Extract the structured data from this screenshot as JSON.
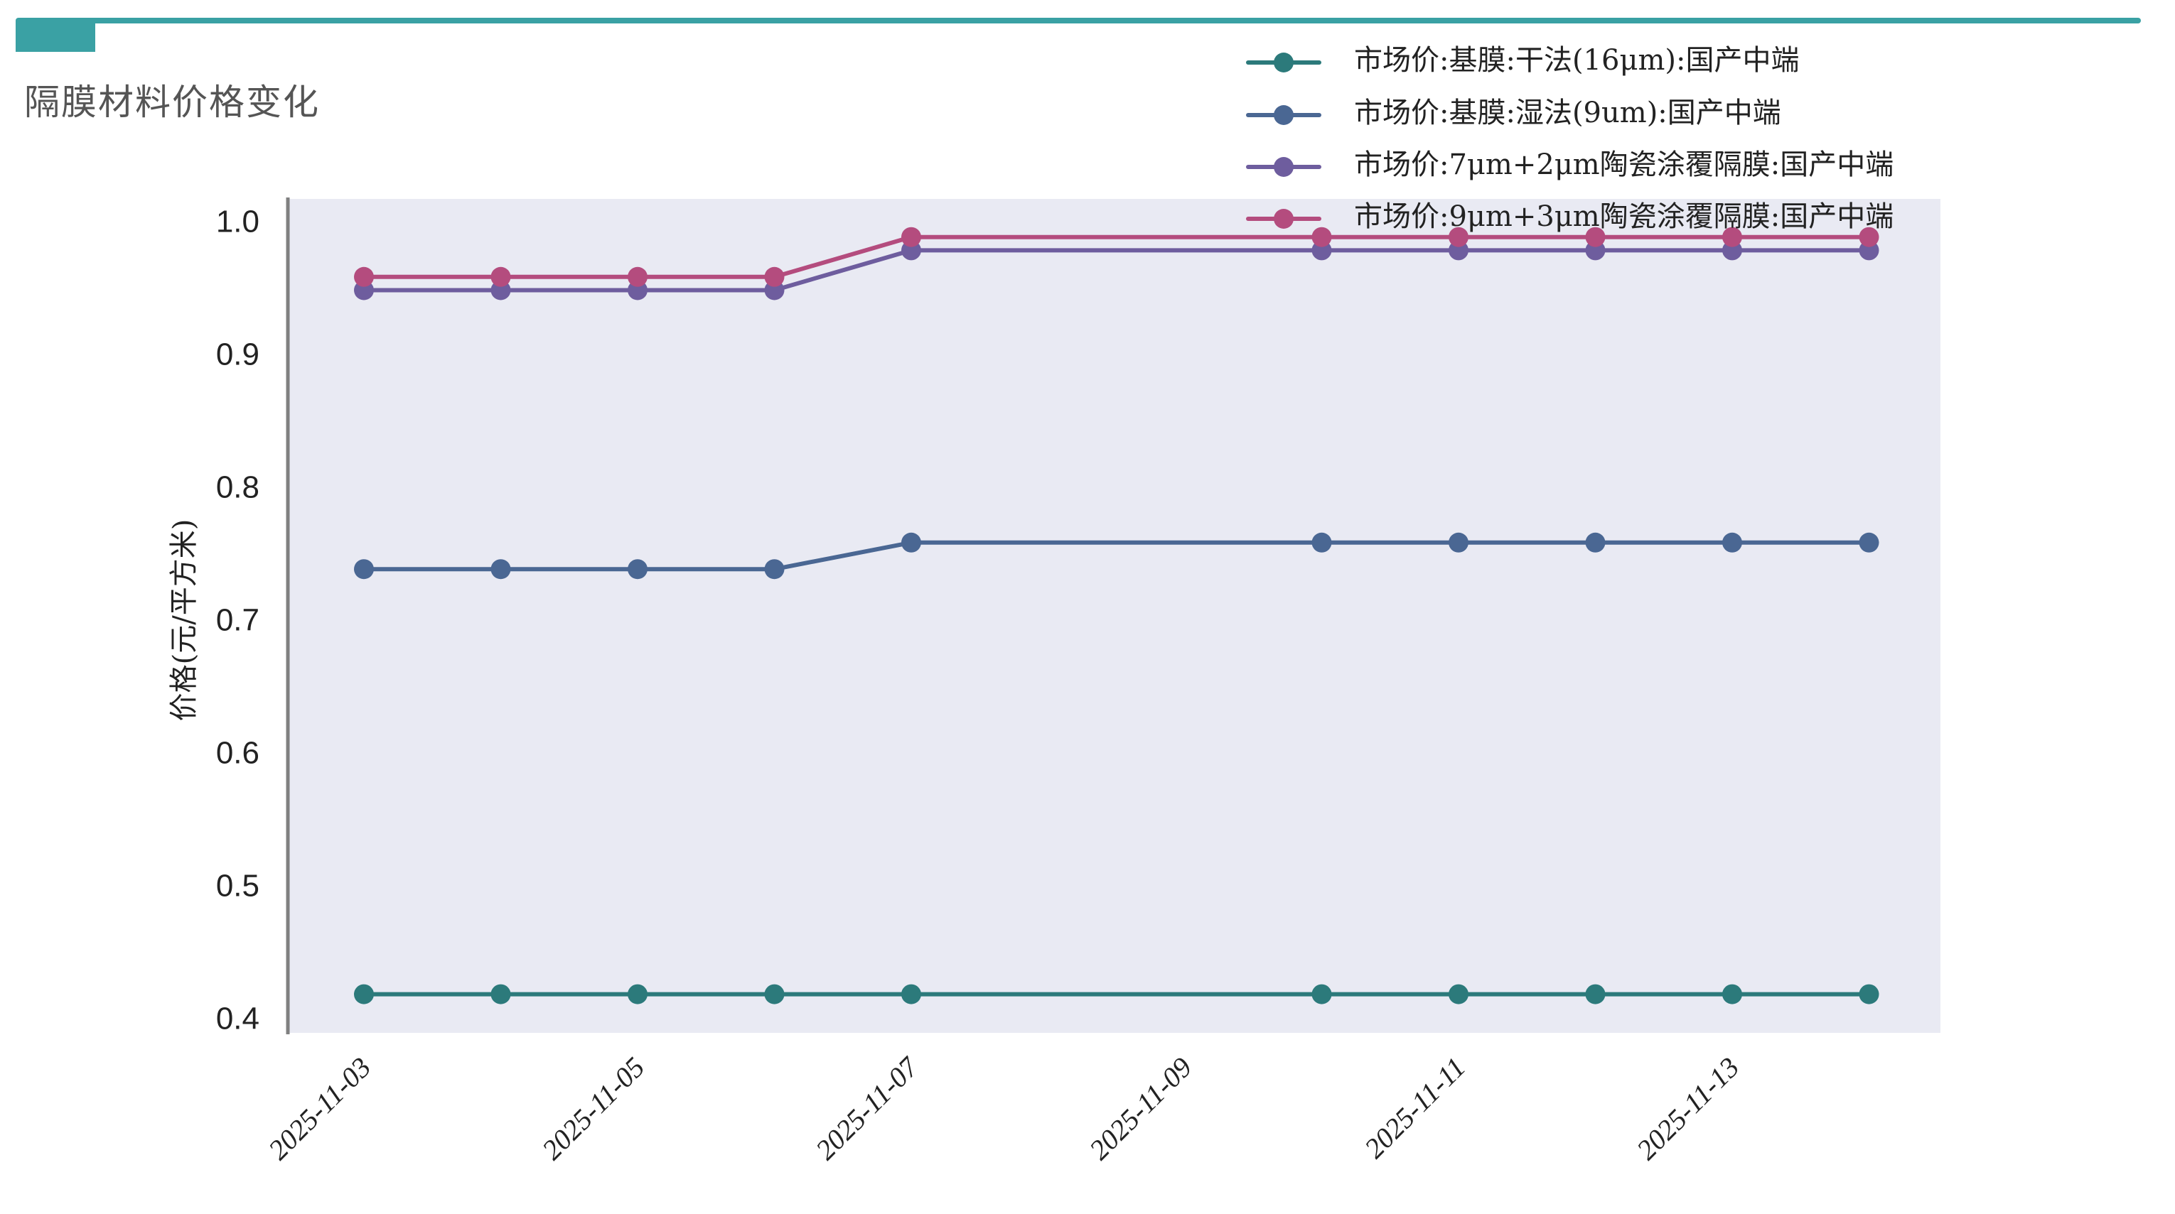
{
  "page": {
    "title": "隔膜材料价格变化",
    "accent_color": "#3aa1a4"
  },
  "chart_data": {
    "type": "line",
    "title": "隔膜材料价格变化",
    "xlabel": "",
    "ylabel": "价格(元/平方米)",
    "ylim": [
      0.4,
      1.0
    ],
    "yticks": [
      "0.4",
      "0.5",
      "0.6",
      "0.7",
      "0.8",
      "0.9",
      "1.0"
    ],
    "xticks": [
      "2025-11-03",
      "2025-11-05",
      "2025-11-07",
      "2025-11-09",
      "2025-11-11",
      "2025-11-13"
    ],
    "x": [
      "2025-11-03",
      "2025-11-04",
      "2025-11-05",
      "2025-11-06",
      "2025-11-07",
      "2025-11-10",
      "2025-11-11",
      "2025-11-12",
      "2025-11-13",
      "2025-11-14"
    ],
    "grid": false,
    "background": "#e9eaf3",
    "legend_position": "upper right (outside top)",
    "series": [
      {
        "name": "市场价:基膜:干法(16μm):国产中端",
        "color": "#2c7a7b",
        "values": [
          0.42,
          0.42,
          0.42,
          0.42,
          0.42,
          0.42,
          0.42,
          0.42,
          0.42,
          0.42
        ]
      },
      {
        "name": "市场价:基膜:湿法(9um):国产中端",
        "color": "#4a6793",
        "values": [
          0.74,
          0.74,
          0.74,
          0.74,
          0.76,
          0.76,
          0.76,
          0.76,
          0.76,
          0.76
        ]
      },
      {
        "name": "市场价:7μm+2μm陶瓷涂覆隔膜:国产中端",
        "color": "#6e5d9e",
        "values": [
          0.95,
          0.95,
          0.95,
          0.95,
          0.98,
          0.98,
          0.98,
          0.98,
          0.98,
          0.98
        ]
      },
      {
        "name": "市场价:9μm+3μm陶瓷涂覆隔膜:国产中端",
        "color": "#b44c7e",
        "values": [
          0.96,
          0.96,
          0.96,
          0.96,
          0.99,
          0.99,
          0.99,
          0.99,
          0.99,
          0.99
        ]
      }
    ]
  }
}
